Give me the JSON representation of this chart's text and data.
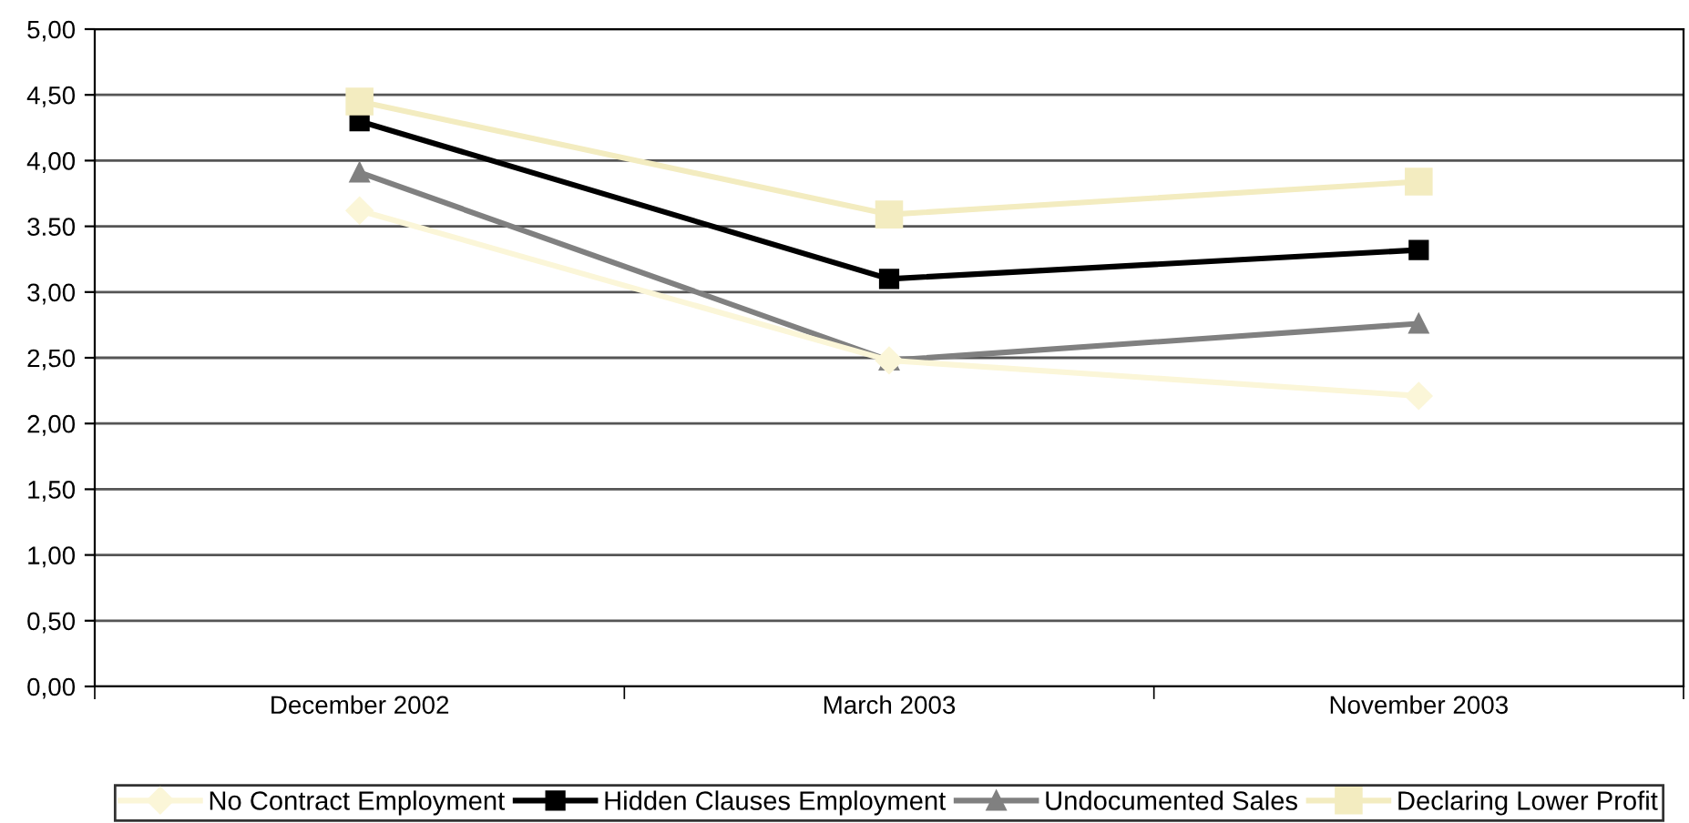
{
  "chart_data": {
    "type": "line",
    "categories": [
      "December 2002",
      "March 2003",
      "November 2003"
    ],
    "series": [
      {
        "name": "No Contract Employment",
        "color": "#fbf6d8",
        "marker": "diamond",
        "values": [
          3.62,
          2.48,
          2.21
        ]
      },
      {
        "name": "Hidden Clauses Employment",
        "color": "#000000",
        "marker": "square",
        "values": [
          4.3,
          3.1,
          3.32
        ]
      },
      {
        "name": "Undocumented Sales",
        "color": "#808080",
        "marker": "triangle",
        "values": [
          3.91,
          2.48,
          2.76
        ]
      },
      {
        "name": "Declaring Lower Profit",
        "color": "#f3ecc0",
        "marker": "square",
        "values": [
          4.45,
          3.59,
          3.84
        ]
      }
    ],
    "ylim": [
      0,
      5
    ],
    "yticks": [
      {
        "value": 0,
        "label": "0,00"
      },
      {
        "value": 0.5,
        "label": "0,50"
      },
      {
        "value": 1,
        "label": "1,00"
      },
      {
        "value": 1.5,
        "label": "1,50"
      },
      {
        "value": 2,
        "label": "2,00"
      },
      {
        "value": 2.5,
        "label": "2,50"
      },
      {
        "value": 3,
        "label": "3,00"
      },
      {
        "value": 3.5,
        "label": "3.50"
      },
      {
        "value": 4,
        "label": "4,00"
      },
      {
        "value": 4.5,
        "label": "4,50"
      },
      {
        "value": 5,
        "label": "5,00"
      }
    ],
    "grid": "y",
    "legend": "bottom",
    "line_style": "solid"
  }
}
